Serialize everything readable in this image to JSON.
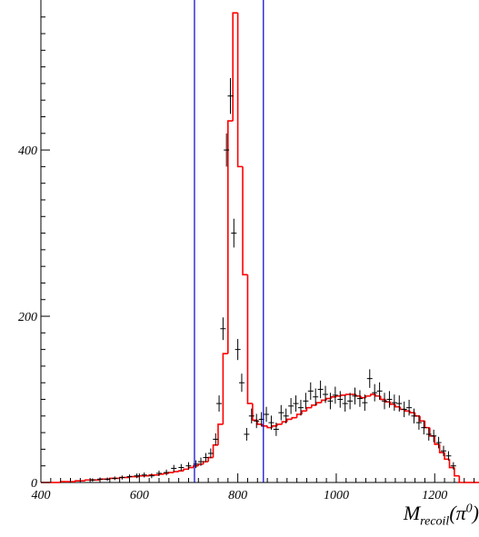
{
  "chart_data": {
    "type": "histogram",
    "title": "",
    "xlabel": {
      "main": "M",
      "sub": "recoil",
      "rest": "(π",
      "sup": "0",
      "close": ")"
    },
    "ylabel": "",
    "xlim": [
      400,
      1290
    ],
    "ylim": [
      0,
      575
    ],
    "x_ticks": [
      400,
      600,
      800,
      1000,
      1200
    ],
    "y_ticks": [
      0,
      200,
      400
    ],
    "grid": false,
    "cut_lines": [
      712,
      852
    ],
    "colors": {
      "histogram": "#ff0000",
      "cut_lines": "#0000cc",
      "points": "#000000",
      "axes": "#000000"
    },
    "series": [
      {
        "style": "step-histogram",
        "bin_width": 10,
        "bins": [
          [
            400,
            0
          ],
          [
            410,
            0
          ],
          [
            420,
            0
          ],
          [
            430,
            0
          ],
          [
            440,
            1
          ],
          [
            450,
            1
          ],
          [
            460,
            1
          ],
          [
            470,
            2
          ],
          [
            480,
            2
          ],
          [
            490,
            3
          ],
          [
            500,
            3
          ],
          [
            510,
            3
          ],
          [
            520,
            4
          ],
          [
            530,
            4
          ],
          [
            540,
            5
          ],
          [
            550,
            5
          ],
          [
            560,
            6
          ],
          [
            570,
            6
          ],
          [
            580,
            7
          ],
          [
            590,
            7
          ],
          [
            600,
            8
          ],
          [
            610,
            8
          ],
          [
            620,
            9
          ],
          [
            630,
            9
          ],
          [
            640,
            10
          ],
          [
            650,
            11
          ],
          [
            660,
            12
          ],
          [
            670,
            13
          ],
          [
            680,
            14
          ],
          [
            690,
            16
          ],
          [
            700,
            18
          ],
          [
            710,
            20
          ],
          [
            720,
            22
          ],
          [
            730,
            25
          ],
          [
            740,
            30
          ],
          [
            750,
            45
          ],
          [
            760,
            70
          ],
          [
            770,
            155
          ],
          [
            780,
            435
          ],
          [
            790,
            565
          ],
          [
            800,
            380
          ],
          [
            810,
            250
          ],
          [
            820,
            95
          ],
          [
            830,
            75
          ],
          [
            840,
            70
          ],
          [
            850,
            68
          ],
          [
            860,
            66
          ],
          [
            870,
            68
          ],
          [
            880,
            70
          ],
          [
            890,
            73
          ],
          [
            900,
            76
          ],
          [
            910,
            78
          ],
          [
            920,
            82
          ],
          [
            930,
            86
          ],
          [
            940,
            90
          ],
          [
            950,
            93
          ],
          [
            960,
            96
          ],
          [
            970,
            99
          ],
          [
            980,
            101
          ],
          [
            990,
            103
          ],
          [
            1000,
            104
          ],
          [
            1010,
            105
          ],
          [
            1020,
            106
          ],
          [
            1030,
            106
          ],
          [
            1040,
            104
          ],
          [
            1050,
            102
          ],
          [
            1060,
            104
          ],
          [
            1070,
            106
          ],
          [
            1080,
            104
          ],
          [
            1090,
            100
          ],
          [
            1100,
            97
          ],
          [
            1110,
            94
          ],
          [
            1120,
            91
          ],
          [
            1130,
            88
          ],
          [
            1140,
            86
          ],
          [
            1150,
            84
          ],
          [
            1160,
            80
          ],
          [
            1170,
            74
          ],
          [
            1180,
            66
          ],
          [
            1190,
            56
          ],
          [
            1200,
            46
          ],
          [
            1210,
            36
          ],
          [
            1220,
            28
          ],
          [
            1230,
            18
          ],
          [
            1240,
            8
          ],
          [
            1250,
            0
          ],
          [
            1260,
            0
          ],
          [
            1270,
            0
          ],
          [
            1280,
            0
          ]
        ]
      },
      {
        "style": "points-with-errors",
        "points": [
          [
            505,
            3
          ],
          [
            520,
            4
          ],
          [
            535,
            4
          ],
          [
            550,
            5
          ],
          [
            565,
            6
          ],
          [
            580,
            7
          ],
          [
            595,
            8
          ],
          [
            610,
            9
          ],
          [
            625,
            8
          ],
          [
            640,
            11
          ],
          [
            655,
            12
          ],
          [
            670,
            17
          ],
          [
            685,
            18
          ],
          [
            700,
            20
          ],
          [
            715,
            22
          ],
          [
            725,
            25
          ],
          [
            735,
            30
          ],
          [
            745,
            35
          ],
          [
            755,
            52
          ],
          [
            762,
            95
          ],
          [
            770,
            185
          ],
          [
            777,
            400
          ],
          [
            785,
            465
          ],
          [
            792,
            300
          ],
          [
            800,
            160
          ],
          [
            808,
            120
          ],
          [
            818,
            58
          ],
          [
            828,
            80
          ],
          [
            838,
            74
          ],
          [
            848,
            76
          ],
          [
            858,
            82
          ],
          [
            868,
            72
          ],
          [
            878,
            64
          ],
          [
            888,
            84
          ],
          [
            898,
            80
          ],
          [
            908,
            92
          ],
          [
            918,
            95
          ],
          [
            928,
            90
          ],
          [
            938,
            98
          ],
          [
            948,
            110
          ],
          [
            958,
            103
          ],
          [
            968,
            112
          ],
          [
            978,
            106
          ],
          [
            988,
            98
          ],
          [
            998,
            105
          ],
          [
            1008,
            100
          ],
          [
            1018,
            95
          ],
          [
            1028,
            98
          ],
          [
            1038,
            104
          ],
          [
            1048,
            101
          ],
          [
            1058,
            96
          ],
          [
            1068,
            125
          ],
          [
            1078,
            108
          ],
          [
            1088,
            110
          ],
          [
            1098,
            98
          ],
          [
            1108,
            100
          ],
          [
            1118,
            96
          ],
          [
            1128,
            95
          ],
          [
            1138,
            88
          ],
          [
            1148,
            90
          ],
          [
            1158,
            80
          ],
          [
            1168,
            72
          ],
          [
            1178,
            66
          ],
          [
            1188,
            58
          ],
          [
            1198,
            56
          ],
          [
            1208,
            48
          ],
          [
            1218,
            38
          ],
          [
            1228,
            32
          ],
          [
            1238,
            20
          ]
        ]
      }
    ]
  }
}
